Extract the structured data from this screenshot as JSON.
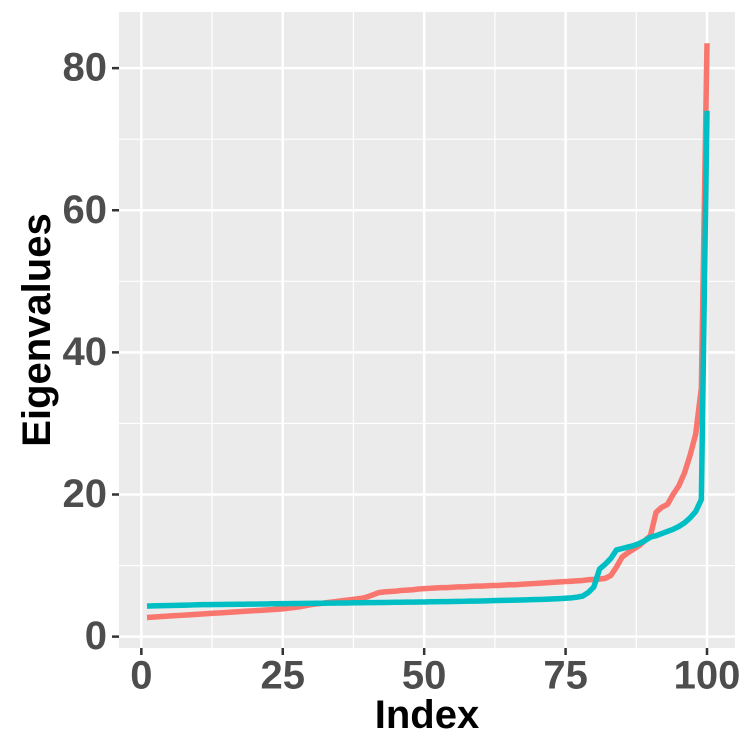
{
  "chart_data": {
    "type": "line",
    "x_label": "Index",
    "y_label": "Eigenvalues",
    "x": [
      1,
      2,
      3,
      4,
      5,
      6,
      7,
      8,
      9,
      10,
      11,
      12,
      13,
      14,
      15,
      16,
      17,
      18,
      19,
      20,
      21,
      22,
      23,
      24,
      25,
      26,
      27,
      28,
      29,
      30,
      31,
      32,
      33,
      34,
      35,
      36,
      37,
      38,
      39,
      40,
      41,
      42,
      43,
      44,
      45,
      46,
      47,
      48,
      49,
      50,
      51,
      52,
      53,
      54,
      55,
      56,
      57,
      58,
      59,
      60,
      61,
      62,
      63,
      64,
      65,
      66,
      67,
      68,
      69,
      70,
      71,
      72,
      73,
      74,
      75,
      76,
      77,
      78,
      79,
      80,
      81,
      82,
      83,
      84,
      85,
      86,
      87,
      88,
      89,
      90,
      91,
      92,
      93,
      94,
      95,
      96,
      97,
      98,
      99,
      100
    ],
    "series": [
      {
        "color": "#F8766D",
        "values": [
          2.7,
          2.75,
          2.8,
          2.85,
          2.9,
          2.95,
          3.0,
          3.05,
          3.1,
          3.15,
          3.2,
          3.25,
          3.3,
          3.35,
          3.4,
          3.45,
          3.5,
          3.55,
          3.6,
          3.65,
          3.7,
          3.75,
          3.8,
          3.85,
          3.9,
          4.0,
          4.1,
          4.2,
          4.35,
          4.5,
          4.6,
          4.7,
          4.8,
          4.9,
          5.0,
          5.1,
          5.2,
          5.3,
          5.4,
          5.6,
          5.9,
          6.2,
          6.3,
          6.35,
          6.4,
          6.5,
          6.55,
          6.6,
          6.7,
          6.75,
          6.8,
          6.85,
          6.9,
          6.9,
          6.95,
          7.0,
          7.0,
          7.05,
          7.1,
          7.1,
          7.15,
          7.2,
          7.2,
          7.25,
          7.3,
          7.3,
          7.35,
          7.4,
          7.45,
          7.5,
          7.55,
          7.6,
          7.65,
          7.7,
          7.75,
          7.8,
          7.85,
          7.9,
          8.0,
          8.05,
          8.1,
          8.2,
          8.6,
          9.8,
          11.2,
          11.8,
          12.3,
          12.8,
          13.5,
          14.2,
          17.5,
          18.2,
          18.6,
          20.0,
          21.2,
          23.0,
          25.5,
          28.5,
          35.0,
          83.5
        ]
      },
      {
        "color": "#00BFC4",
        "values": [
          4.3,
          4.32,
          4.34,
          4.36,
          4.38,
          4.4,
          4.42,
          4.44,
          4.46,
          4.48,
          4.5,
          4.5,
          4.52,
          4.52,
          4.54,
          4.54,
          4.56,
          4.56,
          4.58,
          4.58,
          4.6,
          4.6,
          4.62,
          4.62,
          4.64,
          4.64,
          4.66,
          4.66,
          4.68,
          4.68,
          4.7,
          4.7,
          4.71,
          4.72,
          4.73,
          4.74,
          4.75,
          4.76,
          4.77,
          4.78,
          4.79,
          4.8,
          4.81,
          4.82,
          4.83,
          4.84,
          4.85,
          4.86,
          4.87,
          4.88,
          4.9,
          4.91,
          4.92,
          4.93,
          4.95,
          4.96,
          4.97,
          4.99,
          5.0,
          5.02,
          5.04,
          5.06,
          5.08,
          5.1,
          5.12,
          5.14,
          5.16,
          5.18,
          5.2,
          5.22,
          5.25,
          5.28,
          5.31,
          5.35,
          5.4,
          5.45,
          5.55,
          5.7,
          6.2,
          7.0,
          9.5,
          10.2,
          11.0,
          12.2,
          12.4,
          12.6,
          12.8,
          13.1,
          13.5,
          14.0,
          14.2,
          14.5,
          14.8,
          15.1,
          15.5,
          16.0,
          16.7,
          17.6,
          19.3,
          74.0
        ]
      }
    ],
    "xlim": [
      -3.95,
      104.95
    ],
    "xticks": [
      0,
      25,
      50,
      75,
      100
    ],
    "x_minor": [
      12.5,
      37.5,
      62.5,
      87.5
    ],
    "ylim": [
      -1.6,
      87.9
    ],
    "yticks": [
      0,
      20,
      40,
      60,
      80
    ],
    "y_minor": [
      10,
      30,
      50,
      70
    ],
    "grid": true
  }
}
